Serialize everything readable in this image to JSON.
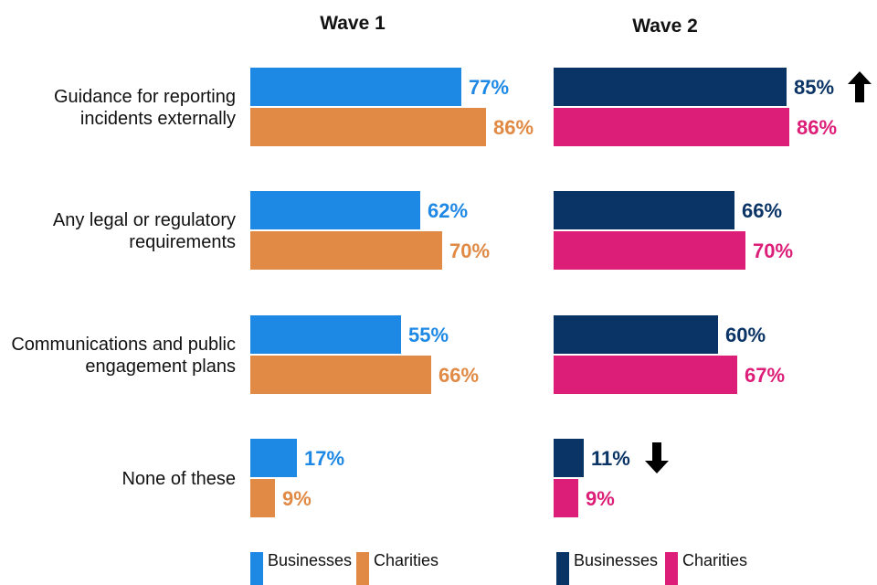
{
  "chart_data": {
    "type": "bar",
    "orientation": "horizontal",
    "categories": [
      [
        "Guidance for reporting",
        "incidents externally"
      ],
      [
        "Any legal or regulatory",
        "requirements"
      ],
      [
        "Communications and public",
        "engagement plans"
      ],
      [
        "None of these"
      ]
    ],
    "value_format": "percent",
    "xlim": [
      0,
      100
    ],
    "panels": [
      {
        "title": "Wave 1",
        "series": [
          {
            "name": "Businesses",
            "color": "#1E88E5",
            "values": [
              77,
              62,
              55,
              17
            ]
          },
          {
            "name": "Charities",
            "color": "#E08A45",
            "values": [
              86,
              70,
              66,
              9
            ]
          }
        ],
        "annotations": []
      },
      {
        "title": "Wave 2",
        "series": [
          {
            "name": "Businesses",
            "color": "#0B3466",
            "values": [
              85,
              66,
              60,
              11
            ]
          },
          {
            "name": "Charities",
            "color": "#DD1E78",
            "values": [
              86,
              70,
              67,
              9
            ]
          }
        ],
        "annotations": [
          {
            "category_index": 0,
            "series": "Businesses",
            "arrow": "up"
          },
          {
            "category_index": 3,
            "series": "Businesses",
            "arrow": "down"
          }
        ]
      }
    ]
  }
}
